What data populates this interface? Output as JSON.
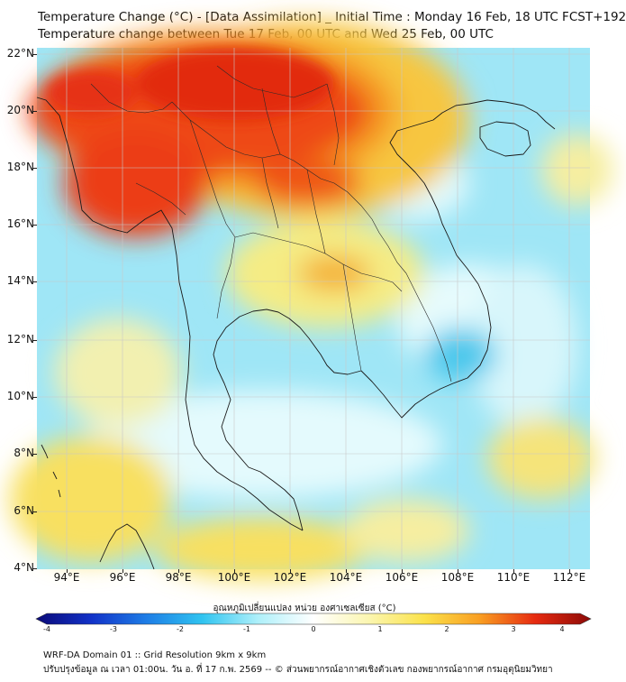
{
  "title": {
    "line1": "Temperature Change (°C) - [Data Assimilation] _ Initial Time : Monday 16 Feb, 18 UTC FCST+192",
    "line2": "Temperature change between Tue 17 Feb, 00 UTC and Wed 25 Feb, 00 UTC"
  },
  "map": {
    "y_labels": [
      "22°N",
      "20°N",
      "18°N",
      "16°N",
      "14°N",
      "12°N",
      "10°N",
      "8°N",
      "6°N",
      "4°N"
    ],
    "x_labels": [
      "94°E",
      "96°E",
      "98°E",
      "100°E",
      "102°E",
      "104°E",
      "106°E",
      "108°E",
      "110°E",
      "112°E"
    ],
    "lat_range": [
      4,
      22
    ],
    "lon_range": [
      93,
      113
    ]
  },
  "colorbar": {
    "label": "อุณหภูมิเปลี่ยนแปลง หน่วย องศาเซลเซียส (°C)",
    "ticks": [
      "-4",
      "-3",
      "-2",
      "-1",
      "0",
      "1",
      "2",
      "3",
      "4"
    ],
    "range": [
      -4,
      4
    ],
    "colors": [
      "#0b0a78",
      "#1232c8",
      "#1e7ee6",
      "#30c4f0",
      "#aef0fa",
      "#ffffff",
      "#fbf6b0",
      "#fbe24a",
      "#f99e22",
      "#e62a10",
      "#8c0a08"
    ]
  },
  "footer": {
    "line1": "WRF-DA Domain 01 :: Grid Resolution 9km x 9km",
    "line2": "ปรับปรุงข้อมูล ณ เวลา 01:00น. วัน อ. ที่ 17 ก.พ. 2569 -- © ส่วนพยากรณ์อากาศเชิงตัวเลข กองพยากรณ์อากาศ กรมอุตุนิยมวิทยา"
  }
}
